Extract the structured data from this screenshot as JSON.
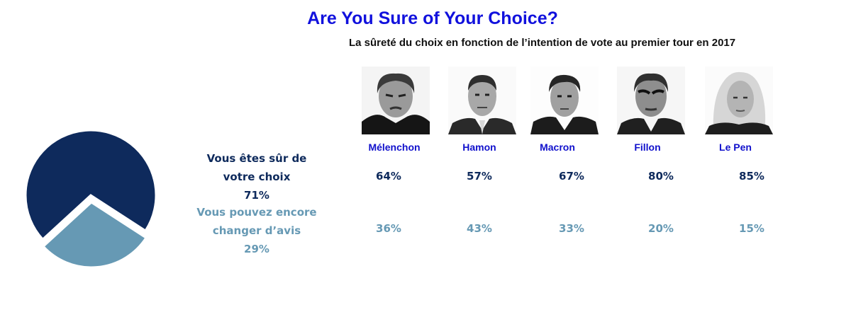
{
  "title": "Are You Sure of Your Choice?",
  "subtitle": "La sûreté du choix en fonction de l’intention de vote au premier tour en 2017",
  "colors": {
    "sure": "#0e2a5c",
    "change": "#6699b4",
    "title": "#1111dd",
    "candidate_name": "#1111cc"
  },
  "legend": {
    "sure_line1": "Vous êtes sûr de",
    "sure_line2": "votre choix",
    "sure_value": "71%",
    "change_line1": "Vous pouvez encore",
    "change_line2": "changer d’avis",
    "change_value": "29%"
  },
  "candidates": [
    {
      "name": "Mélenchon",
      "sure": "64%",
      "change": "36%",
      "photo": "melenchon-photo"
    },
    {
      "name": "Hamon",
      "sure": "57%",
      "change": "43%",
      "photo": "hamon-photo"
    },
    {
      "name": "Macron",
      "sure": "67%",
      "change": "33%",
      "photo": "macron-photo"
    },
    {
      "name": "Fillon",
      "sure": "80%",
      "change": "20%",
      "photo": "fillon-photo"
    },
    {
      "name": "Le Pen",
      "sure": "85%",
      "change": "15%",
      "photo": "le-pen-photo"
    }
  ],
  "chart_data": {
    "type": "pie",
    "categories": [
      "Vous êtes sûr de votre choix",
      "Vous pouvez encore changer d’avis"
    ],
    "values": [
      71,
      29
    ],
    "labels": [
      "71%",
      "29%"
    ],
    "exploded_slice": "Vous pouvez encore changer d’avis"
  }
}
